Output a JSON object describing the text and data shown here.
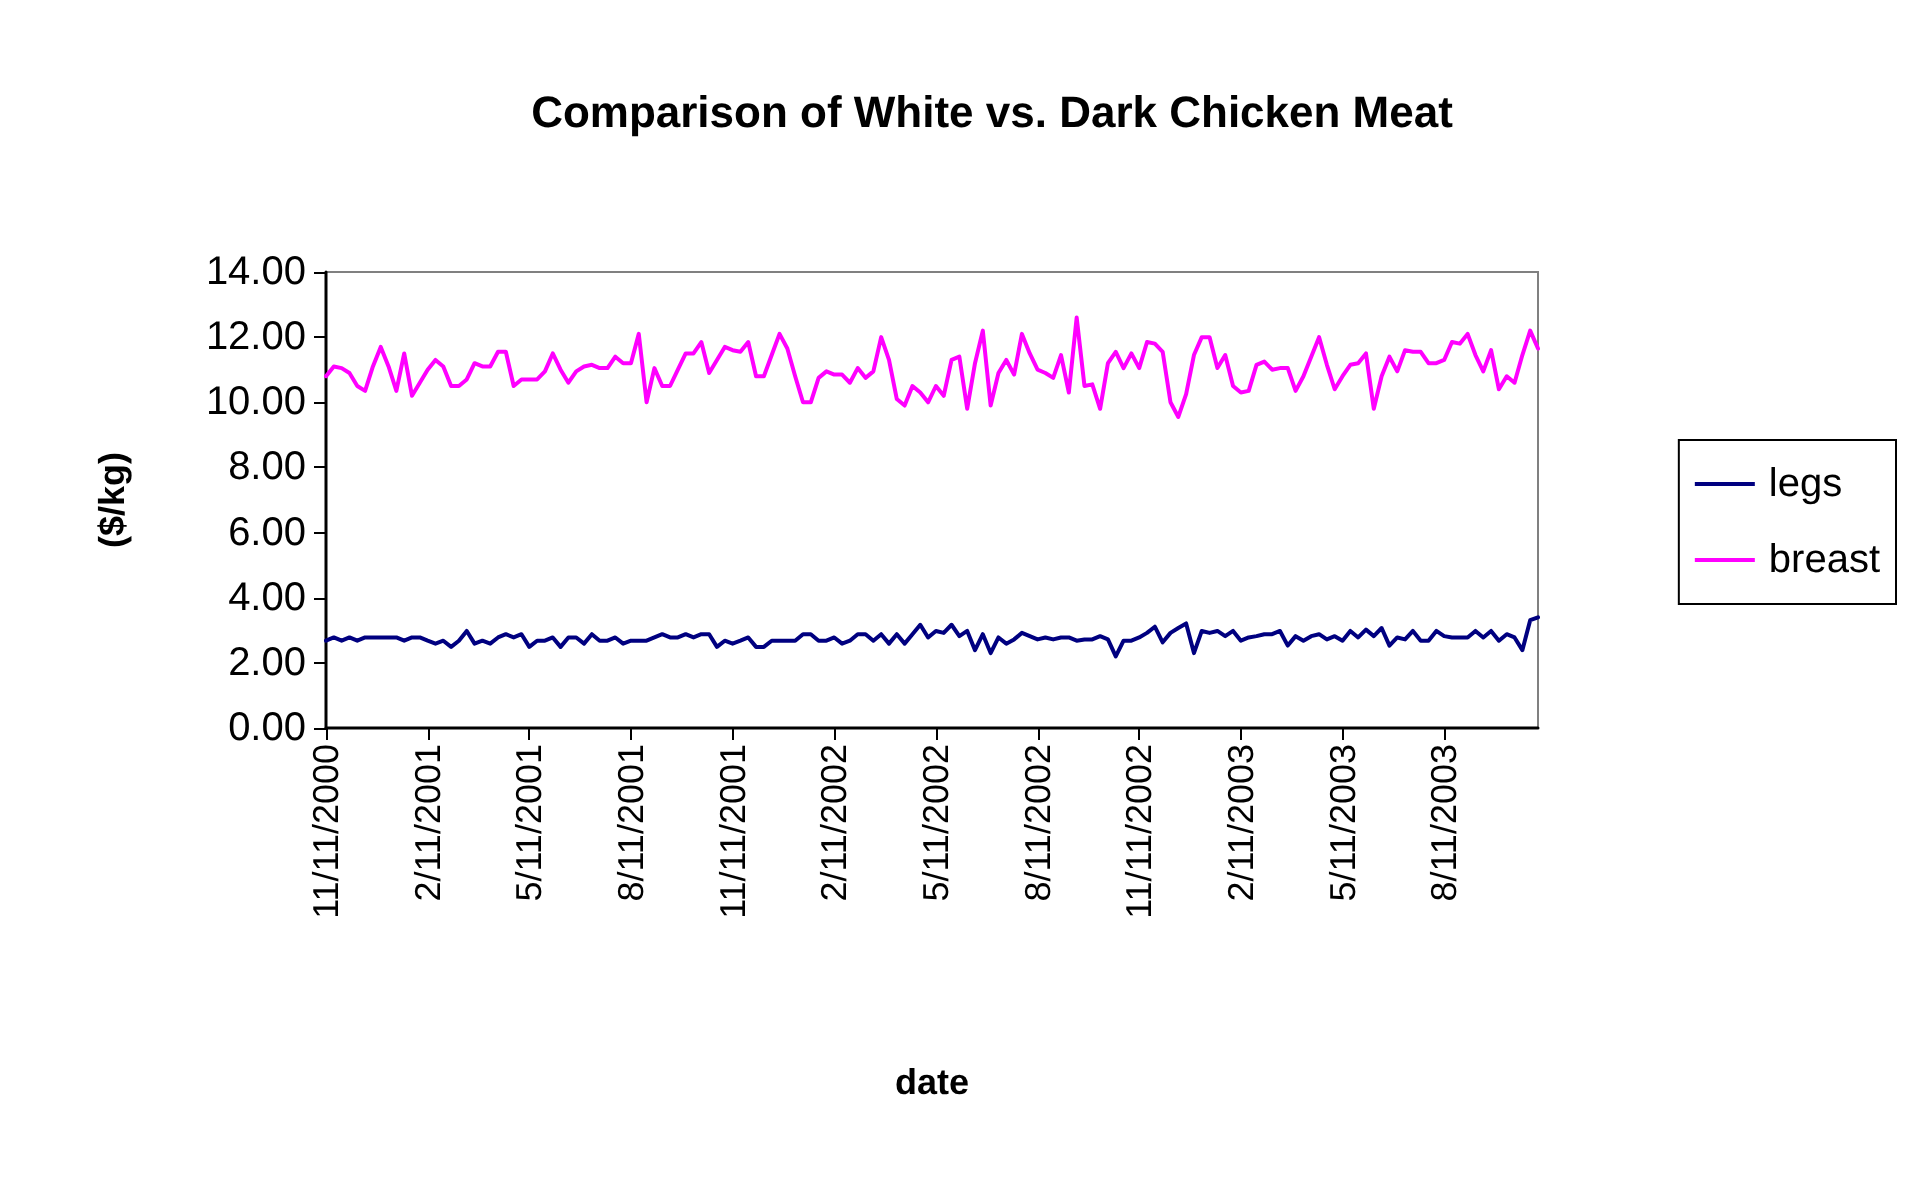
{
  "chart_data": {
    "type": "line",
    "title": "Comparison of White vs. Dark Chicken Meat",
    "xlabel": "date",
    "ylabel": "($/kg)",
    "categories": [
      "11/11/2000",
      null,
      null,
      null,
      null,
      null,
      null,
      null,
      null,
      null,
      null,
      null,
      null,
      "2/11/2001",
      null,
      null,
      null,
      null,
      null,
      null,
      null,
      null,
      null,
      null,
      null,
      null,
      "5/11/2001",
      null,
      null,
      null,
      null,
      null,
      null,
      null,
      null,
      null,
      null,
      null,
      null,
      "8/11/2001",
      null,
      null,
      null,
      null,
      null,
      null,
      null,
      null,
      null,
      null,
      null,
      null,
      "11/11/2001",
      null,
      null,
      null,
      null,
      null,
      null,
      null,
      null,
      null,
      null,
      null,
      null,
      "2/11/2002",
      null,
      null,
      null,
      null,
      null,
      null,
      null,
      null,
      null,
      null,
      null,
      null,
      "5/11/2002",
      null,
      null,
      null,
      null,
      null,
      null,
      null,
      null,
      null,
      null,
      null,
      null,
      "8/11/2002",
      null,
      null,
      null,
      null,
      null,
      null,
      null,
      null,
      null,
      null,
      null,
      null,
      "11/11/2002",
      null,
      null,
      null,
      null,
      null,
      null,
      null,
      null,
      null,
      null,
      null,
      null,
      "2/11/2003",
      null,
      null,
      null,
      null,
      null,
      null,
      null,
      null,
      null,
      null,
      null,
      null,
      "5/11/2003",
      null,
      null,
      null,
      null,
      null,
      null,
      null,
      null,
      null,
      null,
      null,
      null,
      "8/11/2003",
      null,
      null,
      null,
      null,
      null,
      null,
      null,
      null,
      null,
      null,
      null,
      null
    ],
    "series": [
      {
        "name": "legs",
        "color": "#000080",
        "values": [
          2.68,
          2.78,
          2.68,
          2.78,
          2.68,
          2.78,
          2.78,
          2.78,
          2.78,
          2.78,
          2.68,
          2.78,
          2.78,
          2.68,
          2.59,
          2.68,
          2.49,
          2.68,
          2.98,
          2.59,
          2.68,
          2.59,
          2.78,
          2.88,
          2.78,
          2.88,
          2.49,
          2.68,
          2.68,
          2.78,
          2.49,
          2.78,
          2.78,
          2.59,
          2.88,
          2.68,
          2.68,
          2.78,
          2.59,
          2.68,
          2.68,
          2.68,
          2.78,
          2.88,
          2.78,
          2.78,
          2.88,
          2.78,
          2.88,
          2.88,
          2.49,
          2.68,
          2.59,
          2.68,
          2.78,
          2.49,
          2.49,
          2.68,
          2.68,
          2.68,
          2.68,
          2.88,
          2.88,
          2.68,
          2.68,
          2.78,
          2.59,
          2.68,
          2.88,
          2.88,
          2.68,
          2.88,
          2.59,
          2.88,
          2.59,
          2.88,
          3.17,
          2.78,
          2.98,
          2.92,
          3.17,
          2.82,
          2.98,
          2.39,
          2.88,
          2.3,
          2.78,
          2.59,
          2.72,
          2.92,
          2.82,
          2.72,
          2.78,
          2.72,
          2.78,
          2.78,
          2.68,
          2.72,
          2.72,
          2.82,
          2.72,
          2.2,
          2.68,
          2.68,
          2.78,
          2.92,
          3.11,
          2.63,
          2.92,
          3.07,
          3.21,
          2.3,
          2.98,
          2.92,
          2.98,
          2.82,
          2.98,
          2.68,
          2.78,
          2.82,
          2.88,
          2.88,
          2.98,
          2.53,
          2.82,
          2.68,
          2.82,
          2.88,
          2.72,
          2.82,
          2.68,
          2.98,
          2.78,
          3.02,
          2.82,
          3.07,
          2.53,
          2.78,
          2.72,
          2.98,
          2.68,
          2.68,
          2.98,
          2.82,
          2.78,
          2.78,
          2.78,
          2.98,
          2.78,
          2.98,
          2.68,
          2.88,
          2.78,
          2.39,
          3.31,
          3.4
        ]
      },
      {
        "name": "breast",
        "color": "#ff00ff",
        "values": [
          10.8,
          11.1,
          11.05,
          10.9,
          10.5,
          10.35,
          11.1,
          11.7,
          11.1,
          10.35,
          11.5,
          10.2,
          10.6,
          11.0,
          11.3,
          11.1,
          10.5,
          10.5,
          10.7,
          11.2,
          11.1,
          11.1,
          11.55,
          11.55,
          10.5,
          10.7,
          10.7,
          10.7,
          10.95,
          11.5,
          11.0,
          10.6,
          10.95,
          11.1,
          11.15,
          11.05,
          11.05,
          11.4,
          11.2,
          11.2,
          12.1,
          10.0,
          11.05,
          10.5,
          10.5,
          11.0,
          11.5,
          11.5,
          11.85,
          10.9,
          11.3,
          11.7,
          11.6,
          11.55,
          11.85,
          10.8,
          10.8,
          11.45,
          12.1,
          11.65,
          10.8,
          10.0,
          10.0,
          10.75,
          10.95,
          10.85,
          10.85,
          10.6,
          11.05,
          10.75,
          10.95,
          12.0,
          11.3,
          10.1,
          9.9,
          10.5,
          10.3,
          10.0,
          10.5,
          10.2,
          11.3,
          11.4,
          9.8,
          11.2,
          12.2,
          9.9,
          10.9,
          11.3,
          10.85,
          12.1,
          11.5,
          11.0,
          10.9,
          10.75,
          11.45,
          10.3,
          12.6,
          10.5,
          10.55,
          9.8,
          11.2,
          11.55,
          11.05,
          11.5,
          11.05,
          11.85,
          11.8,
          11.55,
          10.0,
          9.55,
          10.25,
          11.45,
          12.0,
          12.0,
          11.05,
          11.45,
          10.5,
          10.3,
          10.35,
          11.15,
          11.25,
          11.0,
          11.05,
          11.05,
          10.35,
          10.8,
          11.4,
          12.0,
          11.15,
          10.4,
          10.8,
          11.15,
          11.2,
          11.5,
          9.8,
          10.8,
          11.4,
          10.95,
          11.6,
          11.55,
          11.55,
          11.2,
          11.2,
          11.3,
          11.85,
          11.8,
          12.1,
          11.45,
          10.95,
          11.6,
          10.4,
          10.8,
          10.6,
          11.45,
          12.2,
          11.65
        ]
      }
    ],
    "ylim": [
      0,
      14
    ],
    "yticks": [
      {
        "value": 0,
        "label": "0.00"
      },
      {
        "value": 2,
        "label": "2.00"
      },
      {
        "value": 4,
        "label": "4.00"
      },
      {
        "value": 6,
        "label": "6.00"
      },
      {
        "value": 8,
        "label": "8.00"
      },
      {
        "value": 10,
        "label": "10.00"
      },
      {
        "value": 12,
        "label": "12.00"
      },
      {
        "value": 14,
        "label": "14.00"
      }
    ],
    "legend": "right",
    "marker": "none",
    "line_style": "solid"
  }
}
